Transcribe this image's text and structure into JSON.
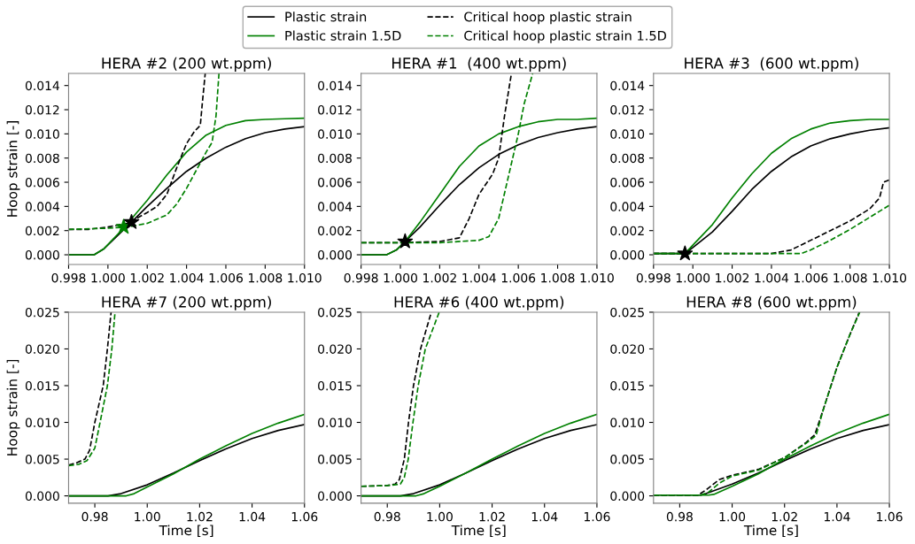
{
  "chart_data": [
    {
      "type": "line",
      "title": "HERA #2 (200 wt.ppm)",
      "ylabel": "Hoop strain [-]",
      "legend": "top",
      "xlim": [
        0.998,
        1.01
      ],
      "ylim": [
        -0.0008,
        0.015
      ],
      "xticks": [
        {
          "value": 0.998,
          "label": "0.998"
        },
        {
          "value": 1.0,
          "label": "1.000"
        },
        {
          "value": 1.002,
          "label": "1.002"
        },
        {
          "value": 1.004,
          "label": "1.004"
        },
        {
          "value": 1.006,
          "label": "1.006"
        },
        {
          "value": 1.008,
          "label": "1.008"
        },
        {
          "value": 1.01,
          "label": "1.010"
        }
      ],
      "yticks": [
        {
          "value": 0,
          "label": "0.000"
        },
        {
          "value": 0.002,
          "label": "0.002"
        },
        {
          "value": 0.004,
          "label": "0.004"
        },
        {
          "value": 0.006,
          "label": "0.006"
        },
        {
          "value": 0.008,
          "label": "0.008"
        },
        {
          "value": 0.01,
          "label": "0.010"
        },
        {
          "value": 0.012,
          "label": "0.012"
        },
        {
          "value": 0.014,
          "label": "0.014"
        }
      ],
      "series": [
        {
          "name": "Plastic strain",
          "color": "#000000",
          "line_style": "solid",
          "x": [
            0.998,
            0.9993,
            0.9998,
            1.0005,
            1.0012,
            1.002,
            1.003,
            1.004,
            1.005,
            1.006,
            1.007,
            1.008,
            1.009,
            1.01
          ],
          "values": [
            0,
            0,
            0.0005,
            0.0016,
            0.0027,
            0.004,
            0.0055,
            0.0069,
            0.008,
            0.0089,
            0.0096,
            0.0101,
            0.0104,
            0.0106
          ]
        },
        {
          "name": "Plastic strain 1.5D",
          "color": "#008000",
          "line_style": "solid",
          "x": [
            0.998,
            0.9993,
            0.9998,
            1.0005,
            1.001,
            1.002,
            1.003,
            1.004,
            1.005,
            1.006,
            1.007,
            1.008,
            1.009,
            1.01
          ],
          "values": [
            0,
            0,
            0.0005,
            0.0017,
            0.0026,
            0.0045,
            0.0066,
            0.0085,
            0.0099,
            0.0107,
            0.0111,
            0.0112,
            0.01125,
            0.0113
          ]
        },
        {
          "name": "Critical hoop plastic strain",
          "color": "#000000",
          "line_style": "dashed",
          "x": [
            0.998,
            0.999,
            1.0,
            1.001,
            1.002,
            1.0025,
            1.003,
            1.0035,
            1.004,
            1.0044,
            1.0047,
            1.0048,
            1.00495
          ],
          "values": [
            0.0021,
            0.0021,
            0.0023,
            0.0026,
            0.0035,
            0.004,
            0.005,
            0.0072,
            0.0092,
            0.0102,
            0.0107,
            0.0125,
            0.015
          ]
        },
        {
          "name": "Critical hoop plastic strain 1.5D",
          "color": "#008000",
          "line_style": "dashed",
          "x": [
            0.998,
            1.0,
            1.001,
            1.002,
            1.003,
            1.0035,
            1.004,
            1.0045,
            1.005,
            1.0053,
            1.0055,
            1.00565
          ],
          "values": [
            0.0021,
            0.0022,
            0.0023,
            0.0026,
            0.0033,
            0.0042,
            0.0055,
            0.007,
            0.0085,
            0.0093,
            0.0115,
            0.015
          ]
        },
        {
          "type": "scatter",
          "marker": "star",
          "color": "#008000",
          "x": [
            1.0008
          ],
          "values": [
            0.0023
          ]
        },
        {
          "type": "scatter",
          "marker": "star",
          "color": "#000000",
          "x": [
            1.0012
          ],
          "values": [
            0.0027
          ]
        }
      ]
    },
    {
      "type": "line",
      "title": "HERA #1  (400 wt.ppm)",
      "xlim": [
        0.998,
        1.01
      ],
      "ylim": [
        -0.0008,
        0.015
      ],
      "xticks": [
        {
          "value": 0.998,
          "label": "0.998"
        },
        {
          "value": 1.0,
          "label": "1.000"
        },
        {
          "value": 1.002,
          "label": "1.002"
        },
        {
          "value": 1.004,
          "label": "1.004"
        },
        {
          "value": 1.006,
          "label": "1.006"
        },
        {
          "value": 1.008,
          "label": "1.008"
        },
        {
          "value": 1.01,
          "label": "1.010"
        }
      ],
      "yticks": [
        {
          "value": 0,
          "label": "0.000"
        },
        {
          "value": 0.002,
          "label": "0.002"
        },
        {
          "value": 0.004,
          "label": "0.004"
        },
        {
          "value": 0.006,
          "label": "0.006"
        },
        {
          "value": 0.008,
          "label": "0.008"
        },
        {
          "value": 0.01,
          "label": "0.010"
        },
        {
          "value": 0.012,
          "label": "0.012"
        },
        {
          "value": 0.014,
          "label": "0.014"
        }
      ],
      "series": [
        {
          "color": "#000000",
          "line_style": "solid",
          "x": [
            0.998,
            0.9993,
            0.9998,
            1.00024,
            1.001,
            1.002,
            1.003,
            1.004,
            1.005,
            1.006,
            1.007,
            1.008,
            1.009,
            1.01
          ],
          "values": [
            0,
            0,
            0.0004,
            0.0011,
            0.0023,
            0.0041,
            0.0058,
            0.0072,
            0.0083,
            0.0091,
            0.0097,
            0.0101,
            0.0104,
            0.0106
          ]
        },
        {
          "color": "#008000",
          "line_style": "solid",
          "x": [
            0.998,
            0.9993,
            0.9998,
            1.00024,
            1.001,
            1.002,
            1.003,
            1.004,
            1.005,
            1.006,
            1.007,
            1.008,
            1.009,
            1.01
          ],
          "values": [
            0,
            0,
            0.0004,
            0.0011,
            0.0027,
            0.005,
            0.0073,
            0.009,
            0.01,
            0.0106,
            0.011,
            0.0112,
            0.0112,
            0.0113
          ]
        },
        {
          "color": "#000000",
          "line_style": "dashed",
          "x": [
            0.998,
            1.0,
            1.002,
            1.003,
            1.0035,
            1.004,
            1.0045,
            1.0047,
            1.005,
            1.0053,
            1.00565
          ],
          "values": [
            0.001,
            0.001,
            0.0011,
            0.0014,
            0.003,
            0.005,
            0.0062,
            0.0067,
            0.008,
            0.0115,
            0.015
          ]
        },
        {
          "color": "#008000",
          "line_style": "dashed",
          "x": [
            0.998,
            1.002,
            1.004,
            1.0045,
            1.005,
            1.0055,
            1.006,
            1.0063,
            1.00673
          ],
          "values": [
            0.001,
            0.001,
            0.0012,
            0.0015,
            0.003,
            0.0065,
            0.01,
            0.0125,
            0.015
          ]
        },
        {
          "type": "scatter",
          "marker": "star",
          "color": "#000000",
          "x": [
            1.00024
          ],
          "values": [
            0.0011
          ]
        }
      ]
    },
    {
      "type": "line",
      "title": "HERA #3  (600 wt.ppm)",
      "xlim": [
        0.998,
        1.01
      ],
      "ylim": [
        -0.0008,
        0.015
      ],
      "xticks": [
        {
          "value": 0.998,
          "label": "0.998"
        },
        {
          "value": 1.0,
          "label": "1.000"
        },
        {
          "value": 1.002,
          "label": "1.002"
        },
        {
          "value": 1.004,
          "label": "1.004"
        },
        {
          "value": 1.006,
          "label": "1.006"
        },
        {
          "value": 1.008,
          "label": "1.008"
        },
        {
          "value": 1.01,
          "label": "1.010"
        }
      ],
      "yticks": [
        {
          "value": 0,
          "label": "0.000"
        },
        {
          "value": 0.002,
          "label": "0.002"
        },
        {
          "value": 0.004,
          "label": "0.004"
        },
        {
          "value": 0.006,
          "label": "0.006"
        },
        {
          "value": 0.008,
          "label": "0.008"
        },
        {
          "value": 0.01,
          "label": "0.010"
        },
        {
          "value": 0.012,
          "label": "0.012"
        },
        {
          "value": 0.014,
          "label": "0.014"
        }
      ],
      "series": [
        {
          "color": "#000000",
          "line_style": "solid",
          "x": [
            0.998,
            0.9996,
            1.0,
            1.001,
            1.002,
            1.003,
            1.004,
            1.005,
            1.006,
            1.007,
            1.008,
            1.009,
            1.01
          ],
          "values": [
            0.0001,
            0.0001,
            0.0006,
            0.0019,
            0.0036,
            0.0054,
            0.0069,
            0.0081,
            0.009,
            0.0096,
            0.01,
            0.0103,
            0.0105
          ]
        },
        {
          "color": "#008000",
          "line_style": "solid",
          "x": [
            0.998,
            0.9996,
            1.0,
            1.001,
            1.002,
            1.003,
            1.004,
            1.005,
            1.006,
            1.007,
            1.008,
            1.009,
            1.01
          ],
          "values": [
            0.0001,
            0.0001,
            0.0008,
            0.0025,
            0.0047,
            0.0067,
            0.0084,
            0.0096,
            0.0104,
            0.0109,
            0.0111,
            0.0112,
            0.0112
          ]
        },
        {
          "color": "#000000",
          "line_style": "dashed",
          "x": [
            0.998,
            1.004,
            1.005,
            1.006,
            1.007,
            1.008,
            1.009,
            1.0095,
            1.0097,
            1.01
          ],
          "values": [
            0.0001,
            0.0001,
            0.0004,
            0.0012,
            0.002,
            0.0028,
            0.0038,
            0.0047,
            0.006,
            0.0062
          ]
        },
        {
          "color": "#008000",
          "line_style": "dashed",
          "x": [
            0.998,
            1.0055,
            1.006,
            1.007,
            1.008,
            1.009,
            1.01
          ],
          "values": [
            0.0001,
            0.0001,
            0.0004,
            0.0012,
            0.0021,
            0.0031,
            0.0041
          ]
        },
        {
          "type": "scatter",
          "marker": "star",
          "color": "#000000",
          "x": [
            0.9996
          ],
          "values": [
            0.0001
          ]
        }
      ]
    },
    {
      "type": "line",
      "title": "HERA #7 (200 wt.ppm)",
      "xlabel": "Time [s]",
      "ylabel": "Hoop strain [-]",
      "xlim": [
        0.97,
        1.06
      ],
      "ylim": [
        -0.001,
        0.025
      ],
      "xticks": [
        {
          "value": 0.98,
          "label": "0.98"
        },
        {
          "value": 1.0,
          "label": "1.00"
        },
        {
          "value": 1.02,
          "label": "1.02"
        },
        {
          "value": 1.04,
          "label": "1.04"
        },
        {
          "value": 1.06,
          "label": "1.06"
        }
      ],
      "yticks": [
        {
          "value": 0,
          "label": "0.000"
        },
        {
          "value": 0.005,
          "label": "0.005"
        },
        {
          "value": 0.01,
          "label": "0.010"
        },
        {
          "value": 0.015,
          "label": "0.015"
        },
        {
          "value": 0.02,
          "label": "0.020"
        },
        {
          "value": 0.025,
          "label": "0.025"
        }
      ],
      "series": [
        {
          "color": "#000000",
          "line_style": "solid",
          "x": [
            0.97,
            0.985,
            0.99,
            1.0,
            1.01,
            1.02,
            1.03,
            1.04,
            1.05,
            1.06
          ],
          "values": [
            0,
            0,
            0.0003,
            0.0015,
            0.0031,
            0.0048,
            0.0064,
            0.0078,
            0.0089,
            0.0097
          ]
        },
        {
          "color": "#008000",
          "line_style": "solid",
          "x": [
            0.97,
            0.992,
            0.995,
            1.0,
            1.01,
            1.02,
            1.03,
            1.04,
            1.05,
            1.06
          ],
          "values": [
            0,
            0,
            0.0003,
            0.0012,
            0.003,
            0.005,
            0.0068,
            0.0085,
            0.0099,
            0.0111
          ]
        },
        {
          "color": "#000000",
          "line_style": "dashed",
          "x": [
            0.97,
            0.973,
            0.9762,
            0.978,
            0.98,
            0.9832,
            0.9848,
            0.9862
          ],
          "values": [
            0.0042,
            0.0045,
            0.005,
            0.0062,
            0.01,
            0.015,
            0.02,
            0.025
          ]
        },
        {
          "color": "#008000",
          "line_style": "dashed",
          "x": [
            0.97,
            0.974,
            0.977,
            0.98,
            0.982,
            0.9848,
            0.9865,
            0.9877
          ],
          "values": [
            0.0041,
            0.0043,
            0.0048,
            0.0065,
            0.01,
            0.015,
            0.02,
            0.025
          ]
        }
      ]
    },
    {
      "type": "line",
      "title": "HERA #6 (400 wt.ppm)",
      "xlabel": "Time [s]",
      "xlim": [
        0.97,
        1.06
      ],
      "ylim": [
        -0.001,
        0.025
      ],
      "xticks": [
        {
          "value": 0.98,
          "label": "0.98"
        },
        {
          "value": 1.0,
          "label": "1.00"
        },
        {
          "value": 1.02,
          "label": "1.02"
        },
        {
          "value": 1.04,
          "label": "1.04"
        },
        {
          "value": 1.06,
          "label": "1.06"
        }
      ],
      "yticks": [
        {
          "value": 0,
          "label": "0.000"
        },
        {
          "value": 0.005,
          "label": "0.005"
        },
        {
          "value": 0.01,
          "label": "0.010"
        },
        {
          "value": 0.015,
          "label": "0.015"
        },
        {
          "value": 0.02,
          "label": "0.020"
        },
        {
          "value": 0.025,
          "label": "0.025"
        }
      ],
      "series": [
        {
          "color": "#000000",
          "line_style": "solid",
          "x": [
            0.97,
            0.985,
            0.99,
            1.0,
            1.01,
            1.02,
            1.03,
            1.04,
            1.05,
            1.06
          ],
          "values": [
            0,
            0,
            0.0003,
            0.0015,
            0.0031,
            0.0048,
            0.0064,
            0.0078,
            0.0089,
            0.0097
          ]
        },
        {
          "color": "#008000",
          "line_style": "solid",
          "x": [
            0.97,
            0.991,
            0.994,
            1.0,
            1.01,
            1.02,
            1.03,
            1.04,
            1.05,
            1.06
          ],
          "values": [
            0,
            0,
            0.0003,
            0.0013,
            0.0031,
            0.005,
            0.0068,
            0.0085,
            0.0099,
            0.0111
          ]
        },
        {
          "color": "#000000",
          "line_style": "dashed",
          "x": [
            0.97,
            0.98,
            0.983,
            0.9846,
            0.9865,
            0.9881,
            0.99,
            0.9927,
            0.9968
          ],
          "values": [
            0.0013,
            0.0014,
            0.0016,
            0.0022,
            0.005,
            0.01,
            0.015,
            0.02,
            0.025
          ]
        },
        {
          "color": "#008000",
          "line_style": "dashed",
          "x": [
            0.97,
            0.98,
            0.985,
            0.9865,
            0.988,
            0.9898,
            0.9918,
            0.9945,
            0.9998
          ],
          "values": [
            0.0013,
            0.0014,
            0.0016,
            0.0025,
            0.005,
            0.01,
            0.015,
            0.02,
            0.025
          ]
        }
      ]
    },
    {
      "type": "line",
      "title": "HERA #8 (600 wt.ppm)",
      "xlabel": "Time [s]",
      "xlim": [
        0.97,
        1.06
      ],
      "ylim": [
        -0.001,
        0.025
      ],
      "xticks": [
        {
          "value": 0.98,
          "label": "0.98"
        },
        {
          "value": 1.0,
          "label": "1.00"
        },
        {
          "value": 1.02,
          "label": "1.02"
        },
        {
          "value": 1.04,
          "label": "1.04"
        },
        {
          "value": 1.06,
          "label": "1.06"
        }
      ],
      "yticks": [
        {
          "value": 0,
          "label": "0.000"
        },
        {
          "value": 0.005,
          "label": "0.005"
        },
        {
          "value": 0.01,
          "label": "0.010"
        },
        {
          "value": 0.015,
          "label": "0.015"
        },
        {
          "value": 0.02,
          "label": "0.020"
        },
        {
          "value": 0.025,
          "label": "0.025"
        }
      ],
      "series": [
        {
          "color": "#000000",
          "line_style": "solid",
          "x": [
            0.97,
            0.988,
            0.99,
            1.0,
            1.01,
            1.02,
            1.03,
            1.04,
            1.05,
            1.06
          ],
          "values": [
            0.0001,
            0.0001,
            0.0003,
            0.0016,
            0.0031,
            0.0048,
            0.0064,
            0.0078,
            0.0089,
            0.0097
          ]
        },
        {
          "color": "#008000",
          "line_style": "solid",
          "x": [
            0.97,
            0.991,
            0.993,
            1.0,
            1.01,
            1.02,
            1.03,
            1.04,
            1.05,
            1.06
          ],
          "values": [
            0.0001,
            0.0001,
            0.0002,
            0.0013,
            0.003,
            0.005,
            0.0068,
            0.0085,
            0.0099,
            0.0111
          ]
        },
        {
          "color": "#000000",
          "line_style": "dashed",
          "x": [
            0.97,
            0.987,
            0.99,
            0.995,
            1.0,
            1.01,
            1.02,
            1.028,
            1.0315,
            1.035,
            1.04,
            1.045,
            1.0485
          ],
          "values": [
            0.0001,
            0.0001,
            0.0008,
            0.0022,
            0.0028,
            0.0036,
            0.0052,
            0.0072,
            0.0083,
            0.012,
            0.0175,
            0.022,
            0.025
          ]
        },
        {
          "color": "#008000",
          "line_style": "dashed",
          "x": [
            0.97,
            0.988,
            0.991,
            0.995,
            1.0,
            1.01,
            1.02,
            1.028,
            1.032,
            1.035,
            1.04,
            1.045,
            1.0487
          ],
          "values": [
            0.0001,
            0.0001,
            0.0005,
            0.0017,
            0.0027,
            0.0035,
            0.0052,
            0.0071,
            0.0082,
            0.012,
            0.0175,
            0.022,
            0.025
          ]
        }
      ]
    }
  ]
}
